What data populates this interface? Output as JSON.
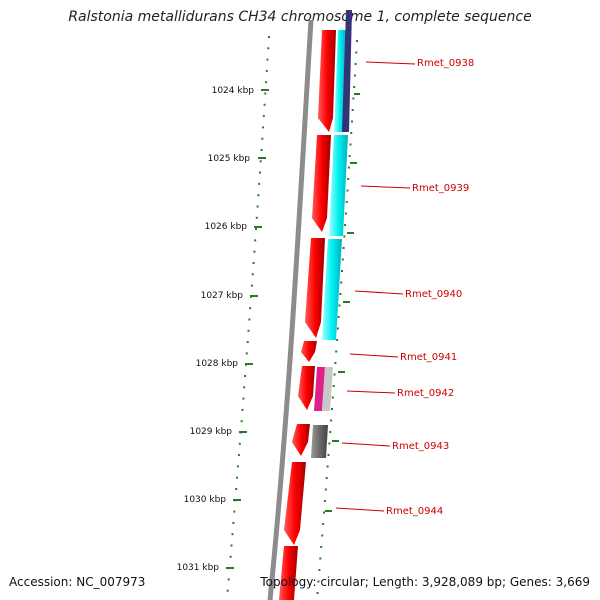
{
  "title": "Ralstonia metallidurans CH34 chromosome 1, complete sequence",
  "accession": "Accession: NC_007973",
  "topology": "Topology: circular; Length: 3,928,089 bp; Genes: 3,669",
  "ruler": {
    "ticks": [
      "1024 kbp",
      "1025 kbp",
      "1026 kbp",
      "1027 kbp",
      "1028 kbp",
      "1029 kbp",
      "1030 kbp",
      "1031 kbp"
    ]
  },
  "genes": [
    {
      "label": "Rmet_0938"
    },
    {
      "label": "Rmet_0939"
    },
    {
      "label": "Rmet_0940"
    },
    {
      "label": "Rmet_0941"
    },
    {
      "label": "Rmet_0942"
    },
    {
      "label": "Rmet_0943"
    },
    {
      "label": "Rmet_0944"
    }
  ],
  "colors": {
    "cds": "#ff0000",
    "backbone": "#8c8c8c",
    "tick": "#2a7a2a",
    "cyan": "#00f0f0",
    "navy": "#333377",
    "magenta": "#e0208a",
    "grey": "#666666",
    "label": "#cc0000"
  }
}
